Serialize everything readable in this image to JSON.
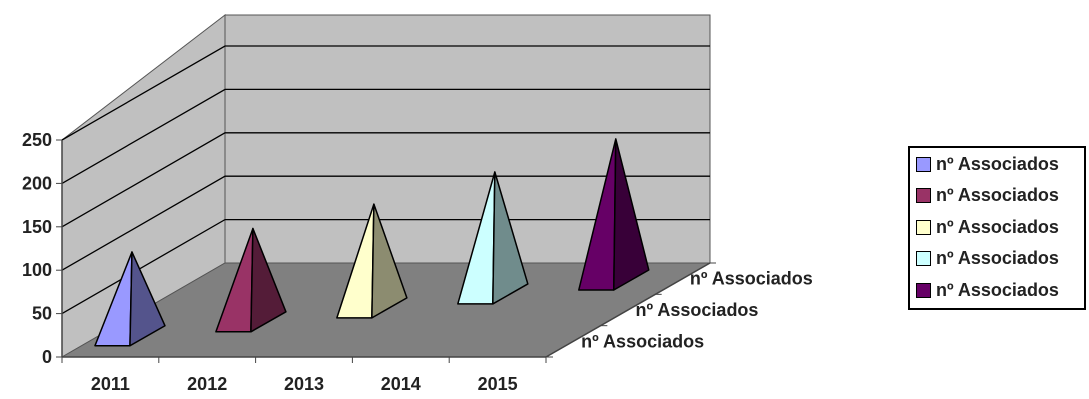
{
  "chart_data": {
    "type": "bar",
    "title": "",
    "xlabel": "",
    "ylabel": "",
    "ylim": [
      0,
      250
    ],
    "yticks": [
      "0",
      "50",
      "100",
      "150",
      "200",
      "250"
    ],
    "categories": [
      "2011",
      "2012",
      "2013",
      "2014",
      "2015"
    ],
    "depth_labels": [
      "nº Associados",
      "nº Associados",
      "nº Associados"
    ],
    "grid": true,
    "legend_position": "right",
    "series": [
      {
        "name": "nº Associados",
        "category": "2011",
        "value": 108,
        "color": "#9999ff"
      },
      {
        "name": "nº Associados",
        "category": "2012",
        "value": 119,
        "color": "#993366"
      },
      {
        "name": "nº Associados",
        "category": "2013",
        "value": 131,
        "color": "#ffffcc"
      },
      {
        "name": "nº Associados",
        "category": "2014",
        "value": 152,
        "color": "#ccffff"
      },
      {
        "name": "nº Associados",
        "category": "2015",
        "value": 174,
        "color": "#660066"
      }
    ]
  }
}
